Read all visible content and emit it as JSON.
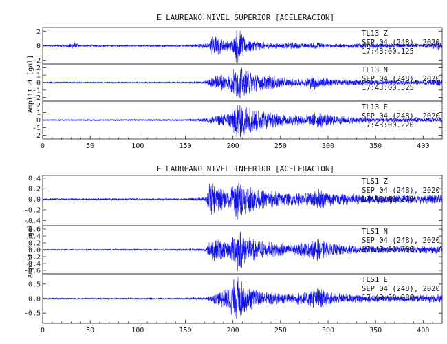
{
  "chart_data": [
    {
      "type": "line",
      "title": "E LAUREANO NIVEL SUPERIOR [ACELERACION]",
      "ylabel": "Amplitud [gal]",
      "xlabel": "",
      "xlim": [
        0,
        420
      ],
      "x_ticks": [
        0,
        50,
        100,
        150,
        200,
        250,
        300,
        350,
        400
      ],
      "x_tick_labels": [
        "0",
        "50",
        "100",
        "150",
        "200",
        "250",
        "300",
        "350",
        "400"
      ],
      "grid": false,
      "panels": [
        {
          "station": "TL13",
          "component": "Z",
          "date": "SEP 04 (248), 2020",
          "time": "17:43:00.125",
          "ylim": [
            -2.5,
            2.5
          ],
          "y_ticks": [
            -2,
            0,
            2
          ],
          "y_tick_labels": [
            "-2",
            "0",
            "2"
          ],
          "envelope": [
            [
              0,
              0.12
            ],
            [
              25,
              0.18
            ],
            [
              33,
              0.5
            ],
            [
              40,
              0.15
            ],
            [
              150,
              0.15
            ],
            [
              168,
              0.35
            ],
            [
              175,
              0.4
            ],
            [
              178,
              1.6
            ],
            [
              185,
              1.3
            ],
            [
              192,
              0.7
            ],
            [
              200,
              0.9
            ],
            [
              204,
              2.6
            ],
            [
              208,
              2.2
            ],
            [
              215,
              0.9
            ],
            [
              235,
              0.5
            ],
            [
              250,
              0.35
            ],
            [
              262,
              0.5
            ],
            [
              280,
              0.3
            ],
            [
              286,
              0.55
            ],
            [
              300,
              0.25
            ],
            [
              340,
              0.4
            ],
            [
              400,
              0.25
            ],
            [
              416,
              0.7
            ],
            [
              420,
              0.35
            ]
          ]
        },
        {
          "station": "TL13",
          "component": "N",
          "date": "SEP 04 (248), 2020",
          "time": "17:43:00.325",
          "ylim": [
            -2.5,
            2.5
          ],
          "y_ticks": [
            -2,
            -1,
            0,
            1,
            2
          ],
          "y_tick_labels": [
            "-2",
            "-1",
            "0",
            "1",
            "2"
          ],
          "envelope": [
            [
              0,
              0.1
            ],
            [
              150,
              0.1
            ],
            [
              170,
              0.2
            ],
            [
              178,
              0.7
            ],
            [
              185,
              1.2
            ],
            [
              195,
              1.0
            ],
            [
              205,
              2.6
            ],
            [
              212,
              1.8
            ],
            [
              225,
              1.2
            ],
            [
              245,
              0.9
            ],
            [
              262,
              0.5
            ],
            [
              275,
              0.5
            ],
            [
              285,
              1.1
            ],
            [
              292,
              0.7
            ],
            [
              310,
              0.45
            ],
            [
              350,
              0.35
            ],
            [
              400,
              0.3
            ],
            [
              420,
              0.5
            ]
          ]
        },
        {
          "station": "TL13",
          "component": "E",
          "date": "SEP 04 (248), 2020",
          "time": "17:43:00.220",
          "ylim": [
            -2.5,
            2.5
          ],
          "y_ticks": [
            -2,
            -1,
            0,
            1,
            2
          ],
          "y_tick_labels": [
            "-2",
            "-1",
            "0",
            "1",
            "2"
          ],
          "envelope": [
            [
              0,
              0.1
            ],
            [
              150,
              0.12
            ],
            [
              170,
              0.25
            ],
            [
              180,
              0.6
            ],
            [
              195,
              1.0
            ],
            [
              205,
              2.6
            ],
            [
              212,
              2.3
            ],
            [
              225,
              1.5
            ],
            [
              245,
              1.0
            ],
            [
              262,
              0.7
            ],
            [
              282,
              0.8
            ],
            [
              290,
              1.2
            ],
            [
              300,
              0.8
            ],
            [
              320,
              0.5
            ],
            [
              350,
              0.35
            ],
            [
              400,
              0.3
            ],
            [
              420,
              0.4
            ]
          ]
        }
      ]
    },
    {
      "type": "line",
      "title": "E LAUREANO NIVEL INFERIOR [ACELERACION]",
      "ylabel": "Amplitud [gal]",
      "xlabel": "",
      "xlim": [
        0,
        420
      ],
      "x_ticks": [
        0,
        50,
        100,
        150,
        200,
        250,
        300,
        350,
        400
      ],
      "x_tick_labels": [
        "0",
        "50",
        "100",
        "150",
        "200",
        "250",
        "300",
        "350",
        "400"
      ],
      "grid": false,
      "panels": [
        {
          "station": "TLS1",
          "component": "Z",
          "date": "SEP 04 (248), 2020",
          "time": "17:43:00.270",
          "ylim": [
            -0.5,
            0.45
          ],
          "y_ticks": [
            -0.4,
            -0.2,
            0.0,
            0.2,
            0.4
          ],
          "y_tick_labels": [
            "-0.4",
            "-0.2",
            "0.0",
            "0.2",
            "0.4"
          ],
          "envelope": [
            [
              0,
              0.02
            ],
            [
              150,
              0.02
            ],
            [
              172,
              0.04
            ],
            [
              175,
              0.35
            ],
            [
              182,
              0.28
            ],
            [
              195,
              0.15
            ],
            [
              205,
              0.45
            ],
            [
              212,
              0.3
            ],
            [
              225,
              0.2
            ],
            [
              245,
              0.16
            ],
            [
              262,
              0.12
            ],
            [
              282,
              0.14
            ],
            [
              290,
              0.22
            ],
            [
              300,
              0.14
            ],
            [
              330,
              0.1
            ],
            [
              380,
              0.08
            ],
            [
              420,
              0.09
            ]
          ]
        },
        {
          "station": "TLS1",
          "component": "N",
          "date": "SEP 04 (248), 2020",
          "time": "17:43:00.700",
          "ylim": [
            -0.7,
            0.7
          ],
          "y_ticks": [
            -0.6,
            -0.4,
            -0.2,
            0.0,
            0.2,
            0.4,
            0.6
          ],
          "y_tick_labels": [
            "-0.6",
            "-0.4",
            "-0.2",
            "0.0",
            "0.2",
            "0.4",
            "0.6"
          ],
          "envelope": [
            [
              0,
              0.02
            ],
            [
              150,
              0.03
            ],
            [
              172,
              0.05
            ],
            [
              176,
              0.3
            ],
            [
              183,
              0.38
            ],
            [
              195,
              0.22
            ],
            [
              205,
              0.7
            ],
            [
              212,
              0.45
            ],
            [
              225,
              0.3
            ],
            [
              245,
              0.22
            ],
            [
              262,
              0.15
            ],
            [
              282,
              0.25
            ],
            [
              289,
              0.35
            ],
            [
              300,
              0.2
            ],
            [
              330,
              0.12
            ],
            [
              380,
              0.1
            ],
            [
              420,
              0.12
            ]
          ]
        },
        {
          "station": "TLS1",
          "component": "E",
          "date": "SEP 04 (248), 2020",
          "time": "17:43:00.280",
          "ylim": [
            -0.85,
            0.85
          ],
          "y_ticks": [
            -0.5,
            0.0,
            0.5
          ],
          "y_tick_labels": [
            "-0.5",
            "0.0",
            "0.5"
          ],
          "envelope": [
            [
              0,
              0.03
            ],
            [
              150,
              0.03
            ],
            [
              172,
              0.05
            ],
            [
              178,
              0.15
            ],
            [
              192,
              0.35
            ],
            [
              205,
              0.85
            ],
            [
              212,
              0.55
            ],
            [
              225,
              0.3
            ],
            [
              245,
              0.22
            ],
            [
              262,
              0.18
            ],
            [
              282,
              0.3
            ],
            [
              290,
              0.4
            ],
            [
              300,
              0.22
            ],
            [
              330,
              0.14
            ],
            [
              380,
              0.12
            ],
            [
              420,
              0.15
            ]
          ]
        }
      ]
    }
  ]
}
